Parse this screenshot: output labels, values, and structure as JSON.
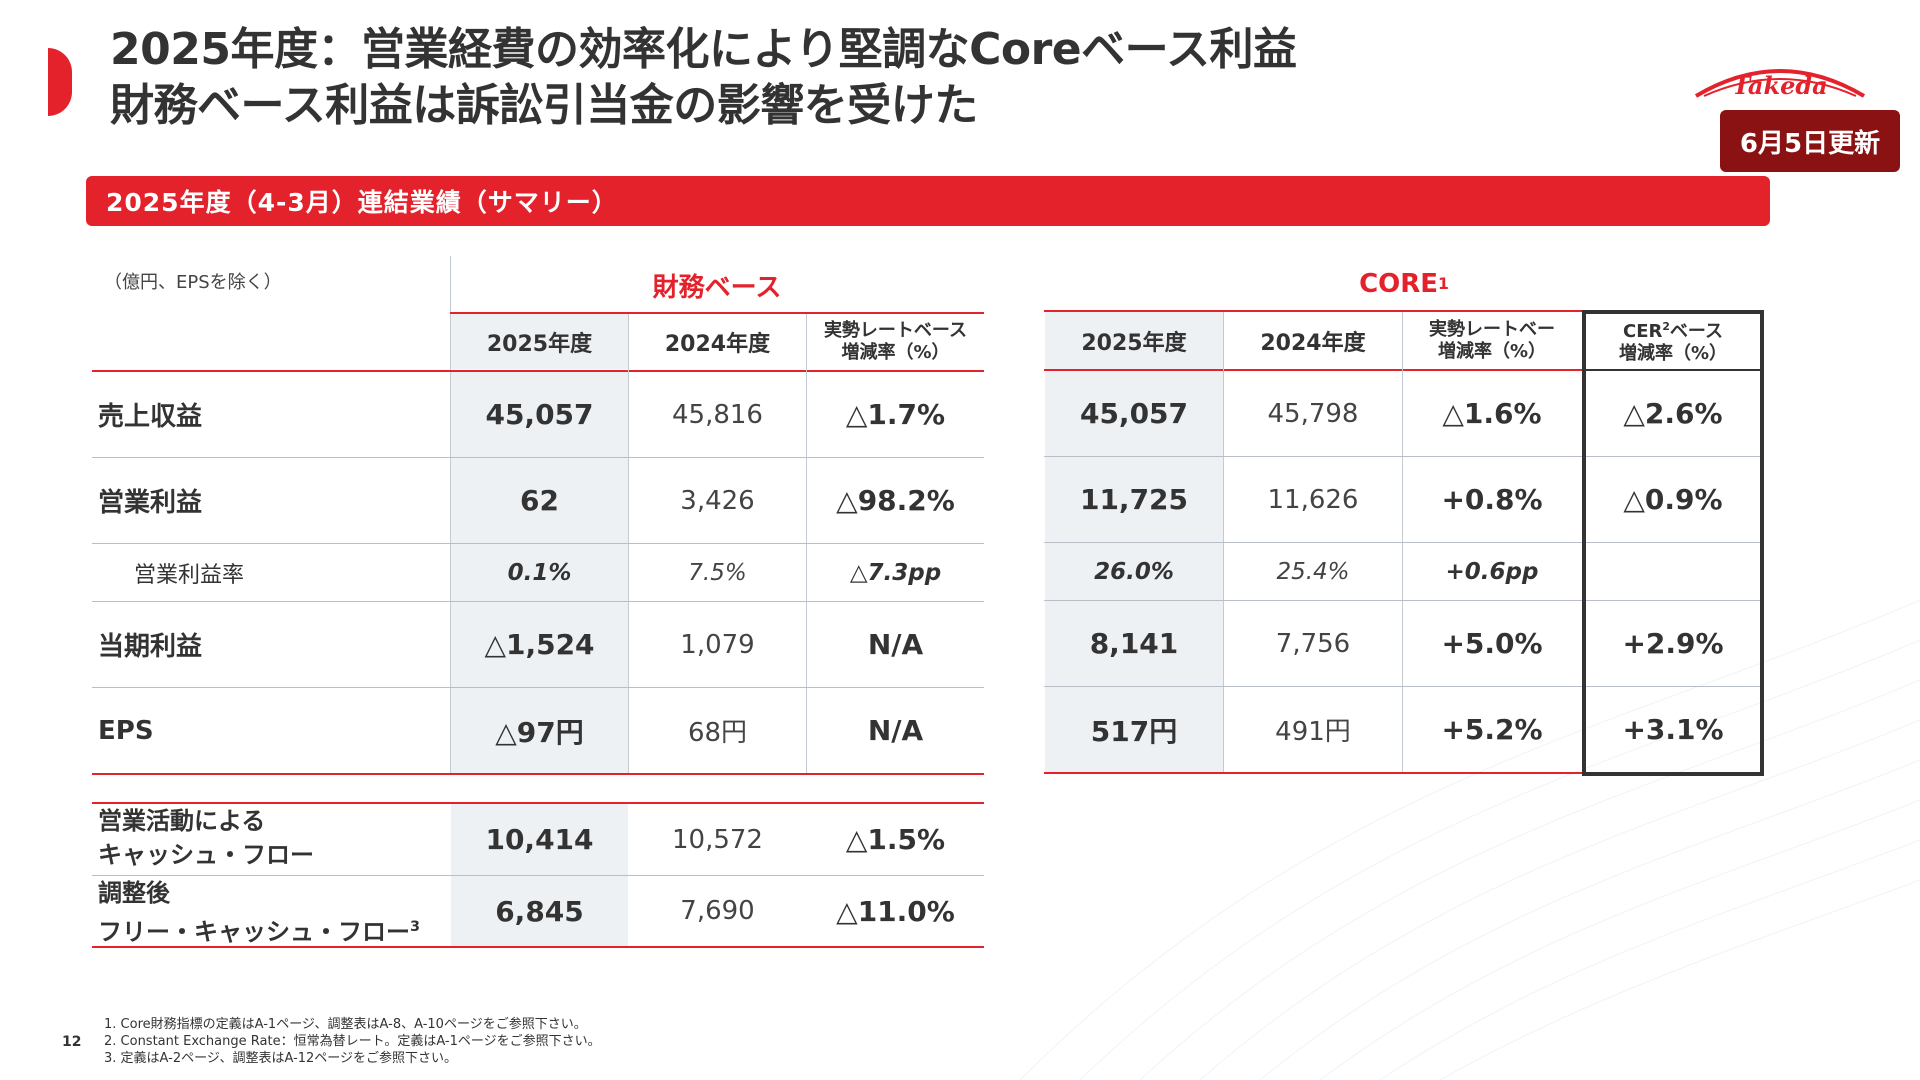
{
  "title": {
    "line1": "2025年度：営業経費の効率化により堅調なCoreベース利益",
    "line2": "財務ベース利益は訴訟引当金の影響を受けた"
  },
  "logo": {
    "text": "Takeda",
    "color": "#e3222c"
  },
  "update_badge": "6月5日更新",
  "section_bar": "2025年度（4-3月）連結業績（サマリー）",
  "unit_note": "（億円、EPSを除く）",
  "financial": {
    "label": "財務ベース",
    "headers": [
      "2025年度",
      "2024年度",
      "実勢レートベース",
      "増減率（%）"
    ]
  },
  "core": {
    "label": "CORE",
    "label_sup": "1",
    "headers": [
      "2025年度",
      "2024年度",
      "実勢レートベー",
      "増減率（%）"
    ],
    "cer_header_a": "CER",
    "cer_header_sup": "2",
    "cer_header_b": "ベース",
    "cer_header_c": "増減率（%）"
  },
  "rows": [
    {
      "label": "売上収益",
      "fin": [
        "45,057",
        "45,816",
        "△1.7%"
      ],
      "core": [
        "45,057",
        "45,798",
        "△1.6%",
        "△2.6%"
      ]
    },
    {
      "label": "営業利益",
      "fin": [
        "62",
        "3,426",
        "△98.2%"
      ],
      "core": [
        "11,725",
        "11,626",
        "+0.8%",
        "△0.9%"
      ]
    },
    {
      "label": "営業利益率",
      "fin": [
        "0.1%",
        "7.5%",
        "△7.3pp"
      ],
      "core": [
        "26.0%",
        "25.4%",
        "+0.6pp",
        ""
      ]
    },
    {
      "label": "当期利益",
      "fin": [
        "△1,524",
        "1,079",
        "N/A"
      ],
      "core": [
        "8,141",
        "7,756",
        "+5.0%",
        "+2.9%"
      ]
    },
    {
      "label": "EPS",
      "fin": [
        "△97円",
        "68円",
        "N/A"
      ],
      "core": [
        "517円",
        "491円",
        "+5.2%",
        "+3.1%"
      ]
    }
  ],
  "cash_rows": [
    {
      "label_line1": "営業活動による",
      "label_line2": "キャッシュ・フロー",
      "label_sup": "",
      "values": [
        "10,414",
        "10,572",
        "△1.5%"
      ]
    },
    {
      "label_line1": "調整後",
      "label_line2": "フリー・キャッシュ・フロー",
      "label_sup": "3",
      "values": [
        "6,845",
        "7,690",
        "△11.0%"
      ]
    }
  ],
  "footnotes": [
    "1. Core財務指標の定義はA-1ページ、調整表はA-8、A-10ページをご参照下さい。",
    "2. Constant Exchange Rate：恒常為替レート。定義はA-1ページをご参照下さい。",
    "3. 定義はA-2ページ、調整表はA-12ページをご参照下さい。"
  ],
  "page_number": "12",
  "colors": {
    "accent": "#e3222c",
    "badge": "#8b1212",
    "shade": "#eef1f4"
  }
}
